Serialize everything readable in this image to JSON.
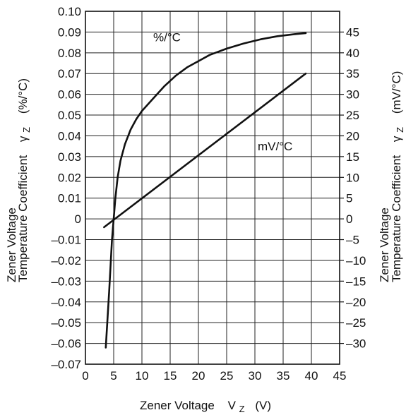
{
  "chart_data": {
    "type": "line",
    "xlabel": "Zener Voltage",
    "xlabel_symbol": "V",
    "xlabel_sub": "Z",
    "xlabel_unit": "(V)",
    "ylabel_left": {
      "line1": "Zener Voltage",
      "line2": "Temperature Coefficient",
      "symbol": "γ",
      "sub": "Z",
      "unit": "(%/°C)"
    },
    "ylabel_right": {
      "line1": "Zener Voltage",
      "line2": "Temperature Coefficient",
      "symbol": "γ",
      "sub": "Z",
      "unit": "(mV/°C)"
    },
    "xlim": [
      0,
      45
    ],
    "ylim_left": [
      -0.07,
      0.1
    ],
    "ylim_right": [
      -35,
      50
    ],
    "x_ticks": [
      "0",
      "5",
      "10",
      "15",
      "20",
      "25",
      "30",
      "35",
      "40",
      "45"
    ],
    "y_left_ticks": [
      "0.10",
      "0.09",
      "0.08",
      "0.07",
      "0.06",
      "0.05",
      "0.04",
      "0.03",
      "0.02",
      "0.01",
      "0",
      "-0.01",
      "-0.02",
      "-0.03",
      "-0.04",
      "-0.05",
      "-0.06",
      "-0.07"
    ],
    "y_right_ticks": [
      "45",
      "40",
      "35",
      "30",
      "25",
      "20",
      "15",
      "10",
      "5",
      "0",
      "-5",
      "-10",
      "-15",
      "-20",
      "-25",
      "-30"
    ],
    "grid": true,
    "series": [
      {
        "name": "%/°C",
        "axis": "left",
        "x": [
          3.6,
          4.2,
          4.7,
          5.0,
          5.3,
          5.7,
          6.2,
          7.0,
          8.0,
          9.0,
          10.0,
          12.0,
          14.0,
          16.0,
          18.0,
          20.0,
          22.0,
          25.0,
          28.0,
          31.0,
          34.0,
          37.0,
          39.0
        ],
        "y": [
          -0.062,
          -0.035,
          -0.01,
          0.0,
          0.01,
          0.02,
          0.028,
          0.036,
          0.043,
          0.048,
          0.052,
          0.058,
          0.064,
          0.069,
          0.073,
          0.076,
          0.079,
          0.082,
          0.0845,
          0.0865,
          0.088,
          0.089,
          0.0895
        ]
      },
      {
        "name": "mV/°C",
        "axis": "right",
        "x": [
          3.3,
          39.0
        ],
        "y": [
          -2.0,
          35.0
        ]
      }
    ]
  }
}
